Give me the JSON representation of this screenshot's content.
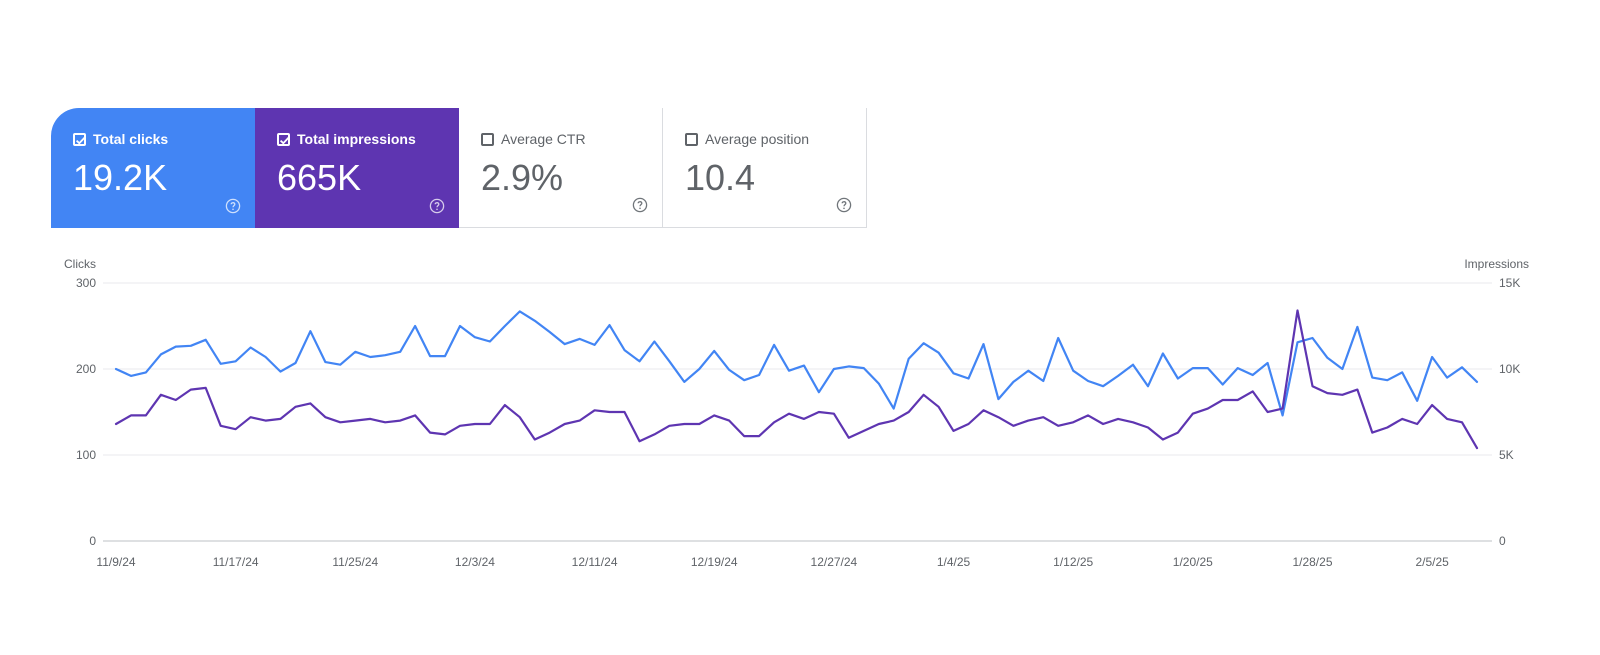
{
  "cards": [
    {
      "label": "Total clicks",
      "value": "19.2K",
      "checked": true,
      "color": "#4285f4"
    },
    {
      "label": "Total impressions",
      "value": "665K",
      "checked": true,
      "color": "#5e35b1"
    },
    {
      "label": "Average CTR",
      "value": "2.9%",
      "checked": false,
      "color": "#ffffff"
    },
    {
      "label": "Average position",
      "value": "10.4",
      "checked": false,
      "color": "#ffffff"
    }
  ],
  "chart_data": {
    "type": "line",
    "x_tick_labels": [
      "11/9/24",
      "11/17/24",
      "11/25/24",
      "12/3/24",
      "12/11/24",
      "12/19/24",
      "12/27/24",
      "1/4/25",
      "1/12/25",
      "1/20/25",
      "1/28/25",
      "2/5/25"
    ],
    "x_tick_indices": [
      0,
      8,
      16,
      24,
      32,
      40,
      48,
      56,
      64,
      72,
      80,
      88
    ],
    "ylabel_left": "Clicks",
    "ylabel_right": "Impressions",
    "ylim_left": [
      0,
      300
    ],
    "ylim_right": [
      0,
      15000
    ],
    "yticks_left": [
      "0",
      "100",
      "200",
      "300"
    ],
    "yticks_right": [
      "0",
      "5K",
      "10K",
      "15K"
    ],
    "grid": true,
    "series": [
      {
        "name": "Total clicks",
        "axis": "left",
        "color": "#4285f4",
        "values": [
          200,
          192,
          196,
          217,
          226,
          227,
          234,
          206,
          209,
          225,
          214,
          197,
          207,
          244,
          208,
          205,
          220,
          214,
          216,
          220,
          250,
          215,
          215,
          250,
          237,
          232,
          250,
          267,
          256,
          243,
          229,
          235,
          228,
          251,
          222,
          209,
          232,
          209,
          185,
          200,
          221,
          199,
          187,
          193,
          228,
          198,
          204,
          173,
          200,
          203,
          201,
          183,
          154,
          212,
          230,
          219,
          195,
          189,
          229,
          165,
          185,
          198,
          186,
          236,
          198,
          186,
          180,
          192,
          205,
          180,
          218,
          189,
          201,
          201,
          182,
          201,
          193,
          207,
          146,
          231,
          236,
          213,
          200,
          249,
          190,
          187,
          196,
          163,
          214,
          190,
          202,
          185
        ]
      },
      {
        "name": "Total impressions",
        "axis": "right",
        "color": "#5e35b1",
        "values": [
          6800,
          7300,
          7300,
          8500,
          8200,
          8800,
          8900,
          6700,
          6500,
          7200,
          7000,
          7100,
          7800,
          8000,
          7200,
          6900,
          7000,
          7100,
          6900,
          7000,
          7300,
          6300,
          6200,
          6700,
          6800,
          6800,
          7900,
          7200,
          5900,
          6300,
          6800,
          7000,
          7600,
          7500,
          7500,
          5800,
          6200,
          6700,
          6800,
          6800,
          7300,
          7000,
          6100,
          6100,
          6900,
          7400,
          7100,
          7500,
          7400,
          6000,
          6400,
          6800,
          7000,
          7500,
          8500,
          7800,
          6400,
          6800,
          7600,
          7200,
          6700,
          7000,
          7200,
          6700,
          6900,
          7300,
          6800,
          7100,
          6900,
          6600,
          5900,
          6300,
          7400,
          7700,
          8200,
          8200,
          8700,
          7500,
          7700,
          13400,
          9000,
          8600,
          8500,
          8800,
          6300,
          6600,
          7100,
          6800,
          7900,
          7100,
          6900,
          5400
        ]
      }
    ]
  }
}
